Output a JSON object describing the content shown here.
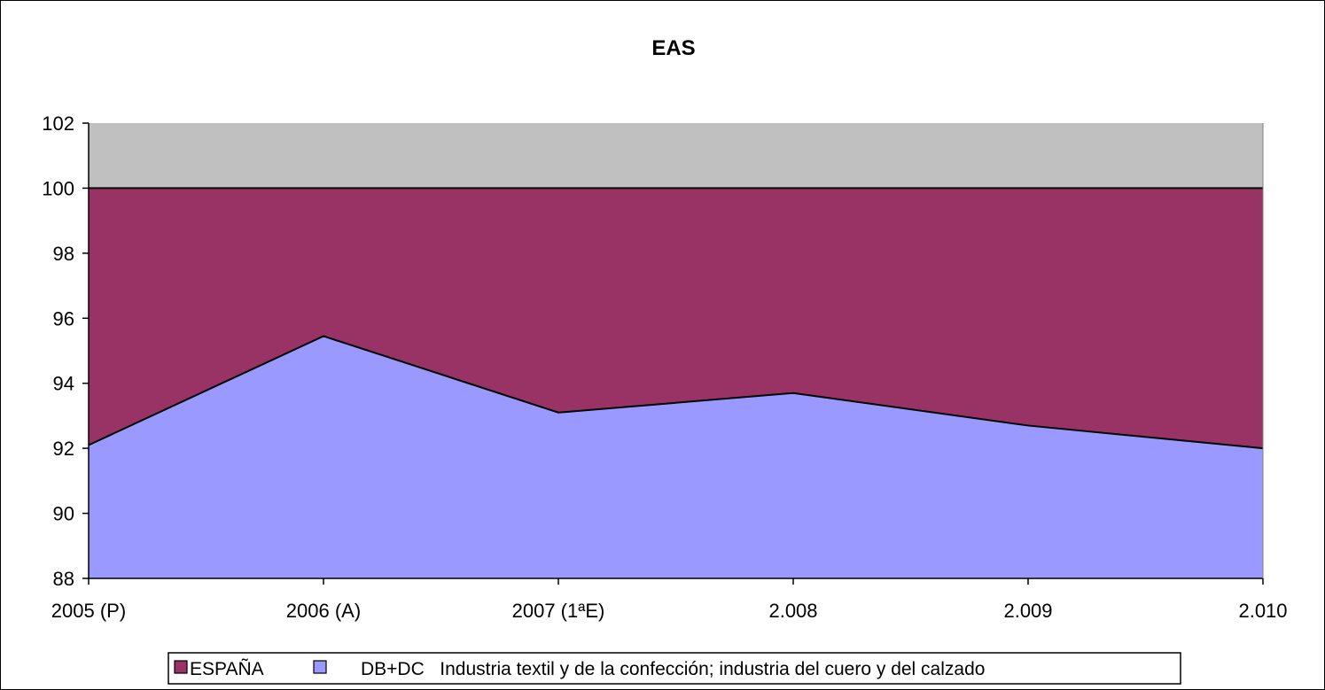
{
  "chart_data": {
    "type": "area",
    "title": "EAS",
    "xlabel": "",
    "ylabel": "",
    "categories": [
      "2005 (P)",
      "2006 (A)",
      "2007 (1ªE)",
      "2.008",
      "2.009",
      "2.010"
    ],
    "ylim": [
      88,
      102
    ],
    "yticks": [
      88,
      90,
      92,
      94,
      96,
      98,
      100,
      102
    ],
    "plot_background_color": "#c0c0c0",
    "series": [
      {
        "name": "DB+DC   Industria textil y de la confección; industria del cuero y del calzado",
        "values": [
          92.1,
          95.45,
          93.1,
          93.7,
          92.7,
          92.0
        ],
        "color": "#9999ff"
      },
      {
        "name": "ESPAÑA",
        "values": [
          100,
          100,
          100,
          100,
          100,
          100
        ],
        "color": "#993366"
      }
    ],
    "legend": {
      "position": "bottom",
      "entries": [
        {
          "label": "ESPAÑA",
          "color": "#993366"
        },
        {
          "label": "DB+DC   Industria textil y de la confección; industria del cuero y del calzado",
          "color": "#9999ff"
        }
      ]
    }
  }
}
